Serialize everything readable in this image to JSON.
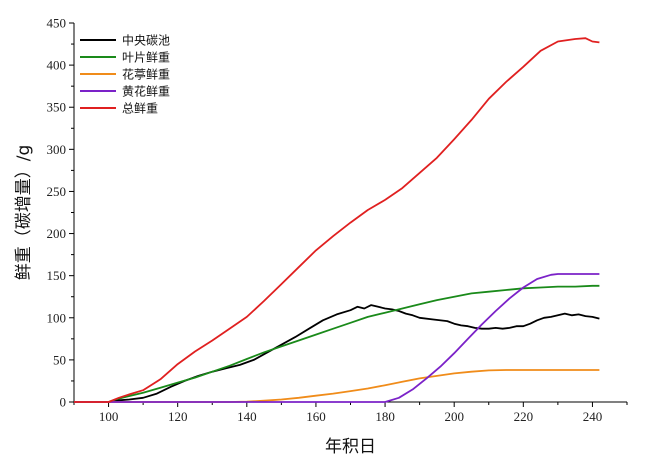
{
  "chart_data": {
    "type": "line",
    "title": "",
    "xlabel": "年积日",
    "ylabel": "鲜重（碳增量）/g",
    "xlim": [
      90,
      250
    ],
    "ylim": [
      0,
      450
    ],
    "xticks": [
      100,
      120,
      140,
      160,
      180,
      200,
      220,
      240
    ],
    "yticks": [
      0,
      50,
      100,
      150,
      200,
      250,
      300,
      350,
      400,
      450
    ],
    "grid": false,
    "legend_position": "top-left",
    "series": [
      {
        "name": "中央碳池",
        "color": "#000000",
        "x": [
          90,
          100,
          103,
          106,
          110,
          114,
          118,
          122,
          126,
          130,
          134,
          138,
          142,
          146,
          150,
          154,
          158,
          162,
          166,
          170,
          172,
          174,
          176,
          178,
          180,
          182,
          184,
          186,
          188,
          190,
          194,
          198,
          200,
          202,
          204,
          206,
          208,
          210,
          212,
          214,
          216,
          218,
          220,
          222,
          224,
          226,
          228,
          230,
          232,
          234,
          236,
          238,
          240,
          242
        ],
        "y": [
          0,
          0,
          2,
          3,
          5,
          10,
          18,
          25,
          31,
          36,
          40,
          44,
          50,
          59,
          68,
          77,
          87,
          97,
          104,
          109,
          113,
          111,
          115,
          113,
          111,
          110,
          108,
          105,
          103,
          100,
          98,
          96,
          93,
          91,
          90,
          88,
          87,
          87,
          88,
          87,
          88,
          90,
          90,
          93,
          97,
          100,
          101,
          103,
          105,
          103,
          104,
          102,
          101,
          99
        ]
      },
      {
        "name": "叶片鲜重",
        "color": "#1a8a1a",
        "x": [
          90,
          100,
          102,
          105,
          110,
          115,
          120,
          125,
          130,
          135,
          140,
          145,
          150,
          155,
          160,
          165,
          170,
          175,
          180,
          185,
          190,
          195,
          200,
          205,
          210,
          215,
          220,
          225,
          230,
          235,
          240,
          242
        ],
        "y": [
          0,
          0,
          3,
          6,
          11,
          17,
          23,
          29,
          36,
          43,
          51,
          59,
          66,
          73,
          80,
          87,
          94,
          101,
          106,
          111,
          116,
          121,
          125,
          129,
          131,
          133,
          135,
          136,
          137,
          137,
          138,
          138
        ]
      },
      {
        "name": "花葶鲜重",
        "color": "#f08c1a",
        "x": [
          90,
          100,
          120,
          135,
          140,
          145,
          150,
          155,
          160,
          165,
          170,
          175,
          180,
          185,
          190,
          195,
          200,
          205,
          210,
          215,
          220,
          230,
          242
        ],
        "y": [
          0,
          0,
          0,
          0,
          0.5,
          1.5,
          3,
          5,
          7.5,
          10,
          13,
          16,
          20,
          24,
          28,
          31,
          34,
          36,
          37.5,
          38,
          38,
          38,
          38
        ]
      },
      {
        "name": "黄花鲜重",
        "color": "#7b22c8",
        "x": [
          90,
          100,
          140,
          150,
          160,
          170,
          175,
          180,
          184,
          188,
          192,
          196,
          200,
          204,
          208,
          212,
          216,
          220,
          224,
          228,
          230,
          235,
          242
        ],
        "y": [
          0,
          0,
          0,
          0,
          0,
          0,
          0,
          0,
          5,
          15,
          28,
          42,
          58,
          75,
          92,
          108,
          123,
          136,
          146,
          151,
          152,
          152,
          152
        ]
      },
      {
        "name": "总鲜重",
        "color": "#e02020",
        "x": [
          90,
          100,
          103,
          106,
          110,
          115,
          120,
          125,
          130,
          135,
          140,
          145,
          150,
          155,
          160,
          165,
          170,
          175,
          180,
          185,
          190,
          195,
          200,
          205,
          210,
          215,
          220,
          225,
          230,
          235,
          238,
          240,
          242
        ],
        "y": [
          0,
          0,
          5,
          9,
          14,
          27,
          45,
          60,
          73,
          87,
          101,
          120,
          140,
          160,
          180,
          197,
          213,
          228,
          240,
          254,
          272,
          290,
          312,
          335,
          360,
          380,
          398,
          417,
          428,
          431,
          432,
          428,
          427
        ]
      }
    ]
  }
}
